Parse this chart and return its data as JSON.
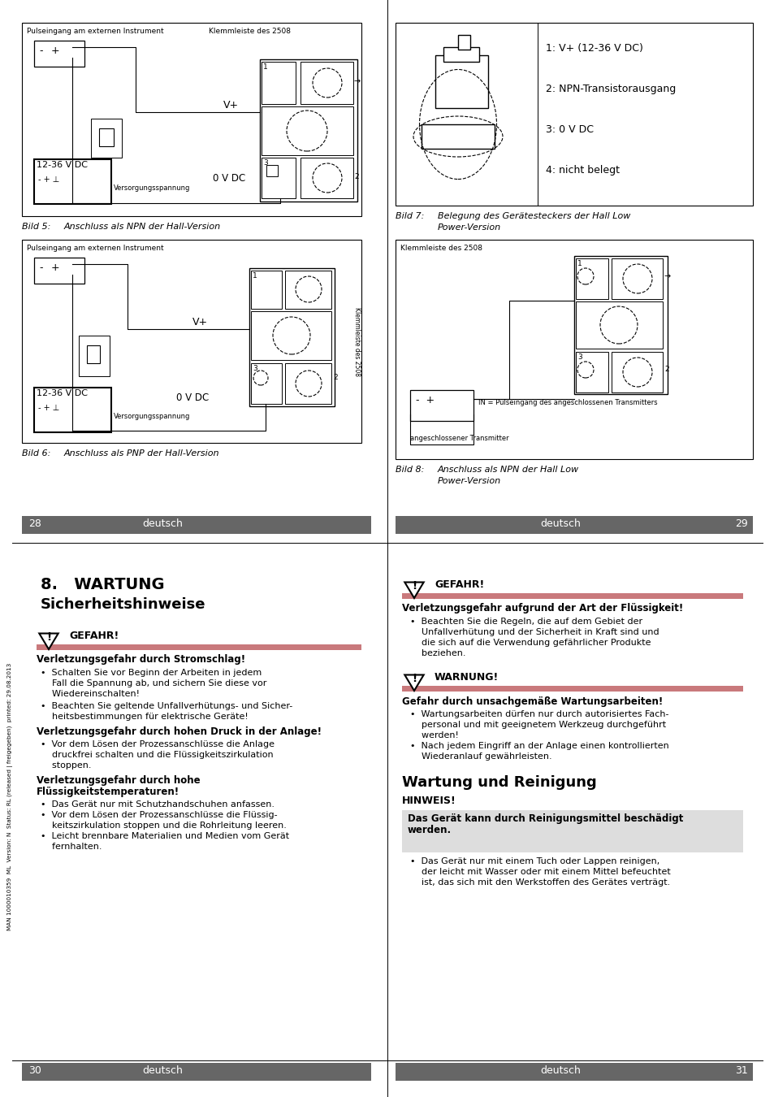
{
  "page_bg": "#ffffff",
  "danger_bar_color": "#c9797c",
  "header_bar_color": "#666666",
  "note_bg_color": "#dddddd",
  "bild7_items": [
    "1: V+ (12-36 V DC)",
    "2: NPN-Transistorausgang",
    "3: 0 V DC",
    "4: nicht belegt"
  ],
  "sidebar_text": "MAN 1000010359  ML  Version: N  Status: RL (released | freigegeben)  printed: 29.08.2013"
}
